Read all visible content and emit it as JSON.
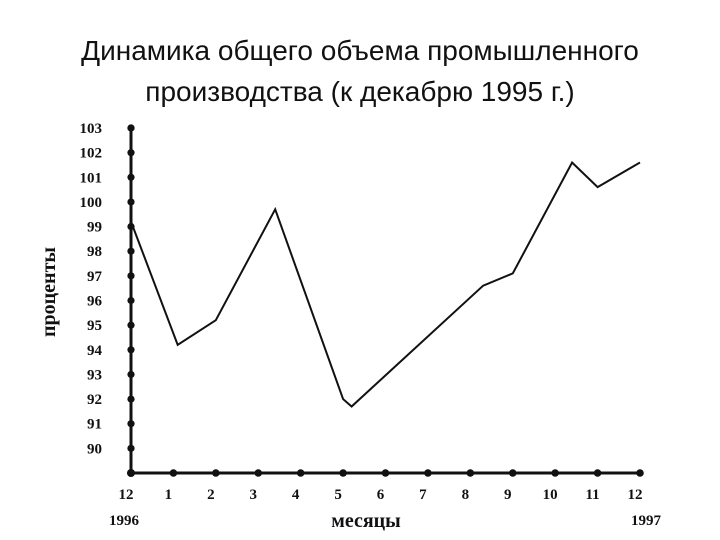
{
  "title_line1": "Динамика общего объема промышленного",
  "title_line2": "производства (к декабрю 1995 г.)",
  "chart_data": {
    "type": "line",
    "title": "Динамика общего объема промышленного производства (к декабрю 1995 г.)",
    "xlabel": "месяцы",
    "ylabel": "проценты",
    "x_ticks": [
      "12",
      "1",
      "2",
      "3",
      "4",
      "5",
      "6",
      "7",
      "8",
      "9",
      "10",
      "11",
      "12"
    ],
    "x_start_note": "1996",
    "x_end_note": "1997",
    "y_ticks": [
      90,
      91,
      92,
      93,
      94,
      95,
      96,
      97,
      98,
      99,
      100,
      101,
      102,
      103
    ],
    "ylim": [
      89,
      103
    ],
    "xlim": [
      0,
      12
    ],
    "grid": false,
    "series": [
      {
        "x": [
          0,
          1.1,
          2.0,
          3.4,
          5.0,
          5.2,
          8.3,
          9.0,
          10.4,
          11.0,
          12.0
        ],
        "y": [
          99.2,
          94.2,
          95.2,
          99.7,
          92.0,
          91.7,
          96.6,
          97.1,
          101.6,
          100.6,
          101.6
        ]
      }
    ],
    "colors": {
      "line": "#111111",
      "axis": "#111111"
    }
  }
}
